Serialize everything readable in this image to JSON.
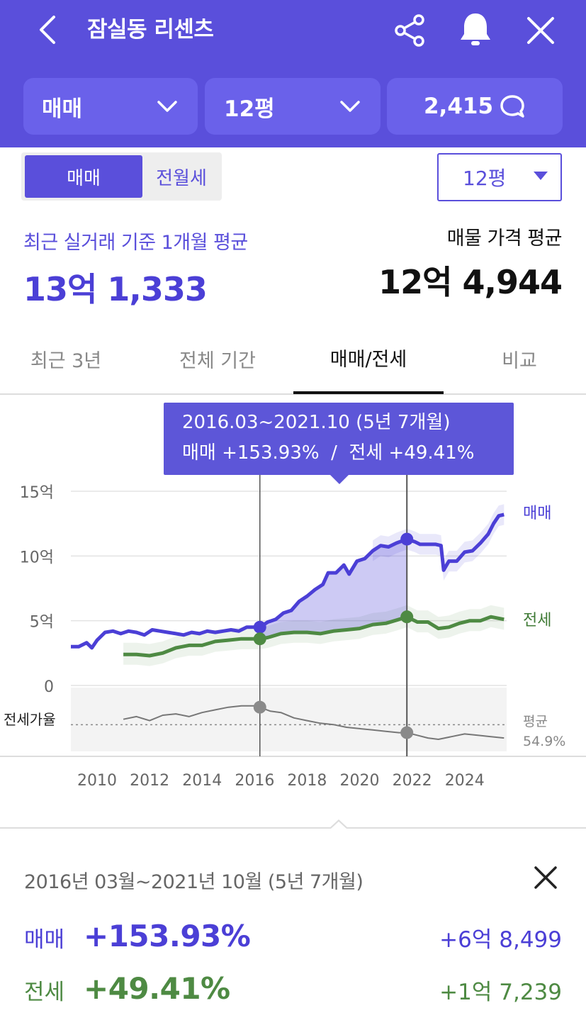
{
  "header": {
    "title": "잠실동 리센츠",
    "type_filter": "매매",
    "size_filter": "12평",
    "talk_count": "2,415",
    "icons": [
      "chevron-left-icon",
      "share-icon",
      "bell-icon",
      "close-icon",
      "chevron-down-icon",
      "chat-bubble-icon"
    ]
  },
  "toggle": {
    "active": "매매",
    "other": "전월세"
  },
  "size_select": {
    "value": "12평"
  },
  "summary": {
    "recent_label": "최근 실거래 기준 1개월 평균",
    "recent_value": "13억 1,333",
    "listing_label": "매물 가격 평균",
    "listing_value": "12억 4,944"
  },
  "tabs": [
    "최근 3년",
    "전체 기간",
    "매매/전세",
    "비교"
  ],
  "tooltip": {
    "range": "2016.03~2021.10 (5년 7개월)",
    "rates": "매매 +153.93%  /  전세 +49.41%"
  },
  "chart_data": {
    "type": "line",
    "y_tick_labels": [
      "15억",
      "10억",
      "5억",
      "0"
    ],
    "y_ticks": [
      15,
      10,
      5,
      0
    ],
    "ylim": [
      0,
      15
    ],
    "xlim": [
      2009.0,
      2025.6
    ],
    "x_tick_labels": [
      "2010",
      "2012",
      "2014",
      "2016",
      "2018",
      "2020",
      "2022",
      "2024"
    ],
    "x_ticks": [
      2010,
      2012,
      2014,
      2016,
      2018,
      2020,
      2022,
      2024
    ],
    "selection": {
      "start": 2016.2,
      "end": 2021.8
    },
    "sub_chart_label": "전세가율",
    "avg_label": "평균",
    "avg_value": "54.9%",
    "ratio_range_percent": [
      35,
      80
    ],
    "ratio_average_percent": 54.9,
    "series": [
      {
        "name": "매매",
        "color": "#4b3fd6",
        "points": [
          [
            2009.0,
            3.0
          ],
          [
            2009.3,
            3.0
          ],
          [
            2009.6,
            3.3
          ],
          [
            2009.8,
            2.9
          ],
          [
            2010.0,
            3.5
          ],
          [
            2010.3,
            4.1
          ],
          [
            2010.6,
            4.2
          ],
          [
            2010.9,
            4.0
          ],
          [
            2011.2,
            4.2
          ],
          [
            2011.5,
            4.1
          ],
          [
            2011.8,
            3.9
          ],
          [
            2012.1,
            4.3
          ],
          [
            2012.4,
            4.2
          ],
          [
            2012.7,
            4.1
          ],
          [
            2013.0,
            4.0
          ],
          [
            2013.3,
            3.9
          ],
          [
            2013.6,
            4.1
          ],
          [
            2013.9,
            4.0
          ],
          [
            2014.2,
            4.2
          ],
          [
            2014.5,
            4.1
          ],
          [
            2014.8,
            4.2
          ],
          [
            2015.1,
            4.3
          ],
          [
            2015.4,
            4.2
          ],
          [
            2015.7,
            4.5
          ],
          [
            2016.0,
            4.5
          ],
          [
            2016.2,
            4.5
          ],
          [
            2016.5,
            4.9
          ],
          [
            2016.8,
            5.1
          ],
          [
            2017.1,
            5.6
          ],
          [
            2017.4,
            5.8
          ],
          [
            2017.7,
            6.5
          ],
          [
            2018.0,
            6.9
          ],
          [
            2018.3,
            7.4
          ],
          [
            2018.6,
            7.8
          ],
          [
            2018.8,
            8.7
          ],
          [
            2019.1,
            8.7
          ],
          [
            2019.4,
            9.3
          ],
          [
            2019.6,
            8.6
          ],
          [
            2019.9,
            9.6
          ],
          [
            2020.2,
            9.8
          ],
          [
            2020.5,
            10.4
          ],
          [
            2020.8,
            10.8
          ],
          [
            2021.1,
            10.7
          ],
          [
            2021.4,
            11.0
          ],
          [
            2021.8,
            11.3
          ],
          [
            2022.1,
            11.1
          ],
          [
            2022.3,
            10.9
          ],
          [
            2022.6,
            10.9
          ],
          [
            2022.9,
            10.9
          ],
          [
            2023.1,
            10.8
          ],
          [
            2023.2,
            8.9
          ],
          [
            2023.4,
            9.6
          ],
          [
            2023.7,
            9.6
          ],
          [
            2024.0,
            10.3
          ],
          [
            2024.3,
            10.4
          ],
          [
            2024.6,
            11.0
          ],
          [
            2024.9,
            11.7
          ],
          [
            2025.1,
            12.5
          ],
          [
            2025.3,
            13.1
          ],
          [
            2025.5,
            13.2
          ]
        ]
      },
      {
        "name": "전세",
        "color": "#4e8a43",
        "points": [
          [
            2011.0,
            2.4
          ],
          [
            2011.5,
            2.4
          ],
          [
            2012.0,
            2.3
          ],
          [
            2012.5,
            2.5
          ],
          [
            2013.0,
            2.9
          ],
          [
            2013.5,
            3.1
          ],
          [
            2014.0,
            3.1
          ],
          [
            2014.5,
            3.4
          ],
          [
            2015.0,
            3.5
          ],
          [
            2015.5,
            3.6
          ],
          [
            2016.0,
            3.6
          ],
          [
            2016.2,
            3.6
          ],
          [
            2016.5,
            3.7
          ],
          [
            2017.0,
            4.0
          ],
          [
            2017.5,
            4.1
          ],
          [
            2018.0,
            4.1
          ],
          [
            2018.5,
            4.0
          ],
          [
            2019.0,
            4.2
          ],
          [
            2019.5,
            4.3
          ],
          [
            2020.0,
            4.4
          ],
          [
            2020.5,
            4.7
          ],
          [
            2021.0,
            4.8
          ],
          [
            2021.5,
            5.1
          ],
          [
            2021.8,
            5.3
          ],
          [
            2022.2,
            4.9
          ],
          [
            2022.6,
            4.9
          ],
          [
            2023.0,
            4.4
          ],
          [
            2023.4,
            4.5
          ],
          [
            2023.8,
            4.8
          ],
          [
            2024.2,
            5.0
          ],
          [
            2024.6,
            5.0
          ],
          [
            2025.0,
            5.3
          ],
          [
            2025.5,
            5.1
          ]
        ]
      },
      {
        "name": "전세가율",
        "color": "#777777",
        "points": [
          [
            2011.0,
            59
          ],
          [
            2011.5,
            61
          ],
          [
            2012.0,
            58
          ],
          [
            2012.5,
            62
          ],
          [
            2013.0,
            63
          ],
          [
            2013.5,
            61
          ],
          [
            2014.0,
            64
          ],
          [
            2014.5,
            66
          ],
          [
            2015.0,
            68
          ],
          [
            2015.5,
            69
          ],
          [
            2016.0,
            69
          ],
          [
            2016.2,
            68
          ],
          [
            2016.6,
            65
          ],
          [
            2017.0,
            64
          ],
          [
            2017.5,
            60
          ],
          [
            2018.0,
            58
          ],
          [
            2018.5,
            56
          ],
          [
            2019.0,
            55
          ],
          [
            2019.5,
            53
          ],
          [
            2020.0,
            52
          ],
          [
            2020.5,
            51
          ],
          [
            2021.0,
            50
          ],
          [
            2021.5,
            49
          ],
          [
            2021.8,
            49
          ],
          [
            2022.2,
            47
          ],
          [
            2022.6,
            45
          ],
          [
            2023.0,
            44
          ],
          [
            2023.5,
            46
          ],
          [
            2024.0,
            48
          ],
          [
            2024.5,
            47
          ],
          [
            2025.0,
            46
          ],
          [
            2025.5,
            45
          ]
        ]
      }
    ]
  },
  "panel": {
    "period": "2016년 03월~2021년 10월 (5년 7개월)",
    "sale_label": "매매",
    "sale_pct": "+153.93%",
    "sale_amount": "+6억 8,499",
    "rent_label": "전세",
    "rent_pct": "+49.41%",
    "rent_amount": "+1억 7,239"
  }
}
